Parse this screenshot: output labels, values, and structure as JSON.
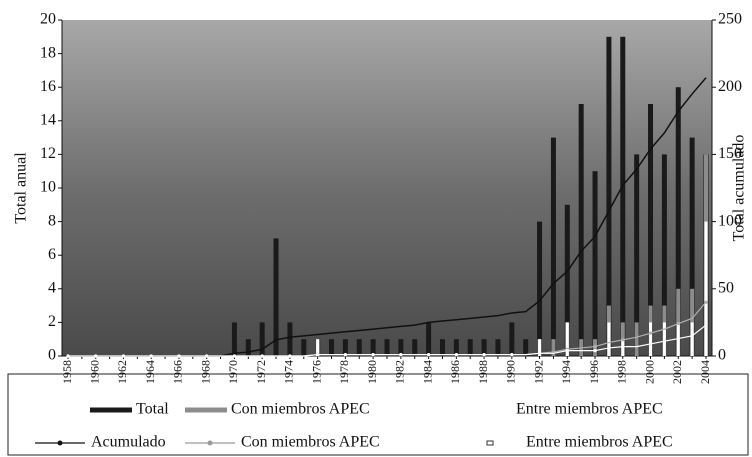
{
  "chart_data": {
    "type": "bar",
    "categories": [
      "1958",
      null,
      "1960",
      null,
      "1962",
      null,
      "1964",
      null,
      "1966",
      null,
      "1968",
      null,
      "1970",
      null,
      "1972",
      null,
      "1974",
      null,
      "1976",
      null,
      "1978",
      null,
      "1980",
      null,
      "1982",
      null,
      "1984",
      null,
      "1986",
      null,
      "1988",
      null,
      "1990",
      null,
      "1992",
      null,
      "1994",
      null,
      "1996",
      null,
      "1998",
      null,
      "2000",
      null,
      "2002",
      null,
      "2004"
    ],
    "ylabel": "Total anual",
    "y2label": "Total acumulado",
    "ylim": [
      0,
      20
    ],
    "yticks": [
      0,
      2,
      4,
      6,
      8,
      10,
      12,
      14,
      16,
      18,
      20
    ],
    "y2lim": [
      0,
      250
    ],
    "y2ticks": [
      0,
      50,
      100,
      150,
      200,
      250
    ],
    "series": [
      {
        "name": "Total",
        "type": "bar",
        "color": "#1a1a1a",
        "values": [
          0,
          0,
          0,
          0,
          0,
          0,
          0,
          0,
          0,
          0,
          0,
          0,
          2,
          1,
          2,
          7,
          2,
          1,
          1,
          1,
          1,
          1,
          1,
          1,
          1,
          1,
          2,
          1,
          1,
          1,
          1,
          1,
          2,
          1,
          8,
          13,
          9,
          15,
          11,
          19,
          19,
          12,
          15,
          12,
          16,
          13,
          12
        ]
      },
      {
        "name": "Con miembros APEC",
        "type": "bar",
        "color": "#8c8c8c",
        "values": [
          0,
          0,
          0,
          0,
          0,
          0,
          0,
          0,
          0,
          0,
          0,
          0,
          0,
          0,
          0,
          0,
          0,
          0,
          1,
          0,
          0,
          0,
          0,
          0,
          0,
          0,
          0,
          0,
          0,
          0,
          0,
          0,
          0,
          0,
          1,
          1,
          2,
          1,
          1,
          3,
          2,
          2,
          3,
          3,
          4,
          4,
          12
        ]
      },
      {
        "name": "Entre miembros APEC",
        "type": "bar",
        "color": "#ffffff",
        "values": [
          0,
          0,
          0,
          0,
          0,
          0,
          0,
          0,
          0,
          0,
          0,
          0,
          0,
          0,
          0,
          0,
          0,
          0,
          1,
          0,
          0,
          0,
          0,
          0,
          0,
          0,
          0,
          0,
          0,
          0,
          0,
          0,
          0,
          0,
          1,
          0,
          2,
          0,
          0,
          2,
          1,
          0,
          2,
          2,
          2,
          2,
          8
        ]
      },
      {
        "name": "Acumulado",
        "type": "line",
        "axis": "y2",
        "color": "#111111",
        "values": [
          0,
          0,
          0,
          0,
          0,
          0,
          0,
          0,
          0,
          0,
          0,
          0,
          2,
          3,
          5,
          12,
          14,
          15,
          16,
          17,
          18,
          19,
          20,
          21,
          22,
          23,
          25,
          26,
          27,
          28,
          29,
          30,
          32,
          33,
          41,
          54,
          63,
          78,
          89,
          108,
          127,
          139,
          154,
          166,
          182,
          195,
          207
        ]
      },
      {
        "name": "Con miembros APEC",
        "type": "line",
        "axis": "y2",
        "color": "#b0b0b0",
        "values": [
          0,
          0,
          0,
          0,
          0,
          0,
          0,
          0,
          0,
          0,
          0,
          0,
          0,
          0,
          0,
          0,
          0,
          0,
          1,
          1,
          1,
          1,
          1,
          1,
          1,
          1,
          1,
          1,
          1,
          1,
          1,
          1,
          1,
          1,
          2,
          3,
          5,
          6,
          7,
          10,
          12,
          14,
          17,
          20,
          24,
          28,
          40
        ]
      },
      {
        "name": "Entre miembros APEC",
        "type": "line",
        "axis": "y2",
        "color": "#ffffff",
        "values": [
          0,
          0,
          0,
          0,
          0,
          0,
          0,
          0,
          0,
          0,
          0,
          0,
          0,
          0,
          0,
          0,
          0,
          0,
          1,
          1,
          1,
          1,
          1,
          1,
          1,
          1,
          1,
          1,
          1,
          1,
          1,
          1,
          1,
          1,
          2,
          2,
          4,
          4,
          4,
          6,
          7,
          7,
          9,
          11,
          13,
          15,
          23
        ]
      }
    ]
  }
}
